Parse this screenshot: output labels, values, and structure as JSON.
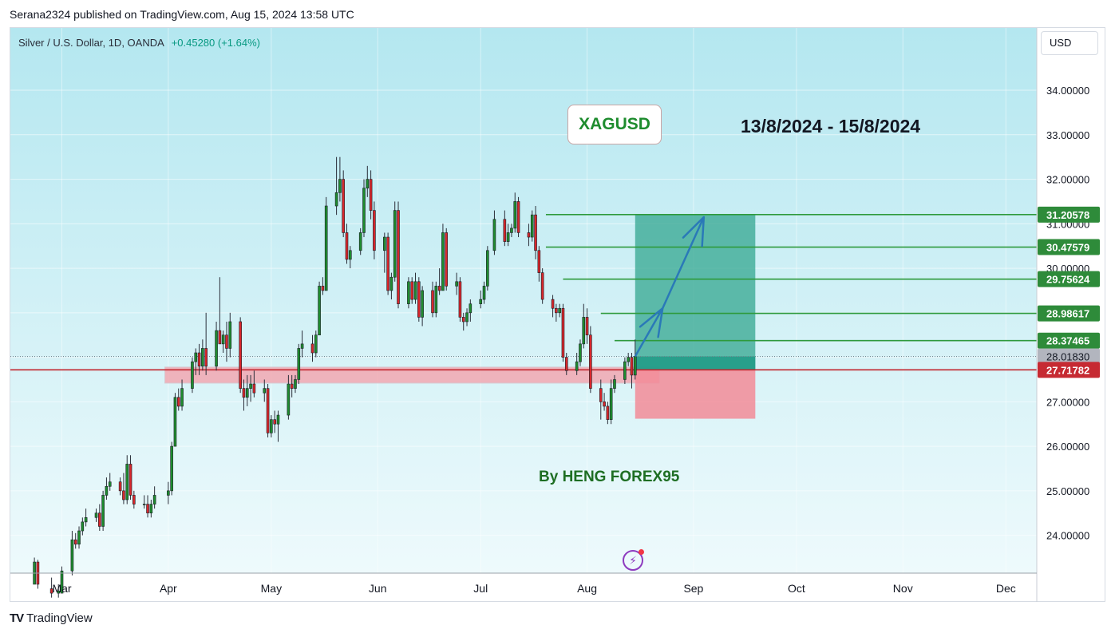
{
  "header": {
    "published_by": "Serana2324 published on TradingView.com, Aug 15, 2024 13:58 UTC"
  },
  "symbol": {
    "name": "Silver / U.S. Dollar, 1D, OANDA",
    "change": "+0.45280 (+1.64%)"
  },
  "currency": "USD",
  "annotations": {
    "ticker": "XAGUSD",
    "date_range": "13/8/2024 - 15/8/2024",
    "author": "By HENG FOREX95"
  },
  "brand": {
    "name": "TradingView"
  },
  "colors": {
    "up": "#1e8c2e",
    "down": "#d8262b",
    "target_zone": "#3aa993",
    "stop_zone": "#f28b98",
    "support_zone": "#f3a3ad",
    "level_line": "#2e9a3c",
    "entry_line": "#c2262e",
    "arrow": "#2a79b8"
  },
  "chart_data": {
    "type": "candlestick",
    "y_axis_ticks": [
      24,
      25,
      26,
      27,
      28,
      29,
      30,
      31,
      32,
      33,
      34
    ],
    "y_tick_labels": [
      "24.00000",
      "25.00000",
      "26.00000",
      "27.00000",
      "28.00000",
      "29.00000",
      "30.00000",
      "31.00000",
      "32.00000",
      "33.00000",
      "34.00000"
    ],
    "ylim": [
      23.15,
      35.4
    ],
    "x_axis_labels": [
      {
        "label": "Mar",
        "date": "2024-03-01"
      },
      {
        "label": "Apr",
        "date": "2024-04-01"
      },
      {
        "label": "May",
        "date": "2024-05-01"
      },
      {
        "label": "Jun",
        "date": "2024-06-01"
      },
      {
        "label": "Jul",
        "date": "2024-07-01"
      },
      {
        "label": "Aug",
        "date": "2024-08-01"
      },
      {
        "label": "Sep",
        "date": "2024-09-01"
      },
      {
        "label": "Oct",
        "date": "2024-10-01"
      },
      {
        "label": "Nov",
        "date": "2024-11-01"
      },
      {
        "label": "Dec",
        "date": "2024-12-01"
      }
    ],
    "xlim": [
      "2024-02-15",
      "2024-12-10"
    ],
    "price_labels": [
      {
        "value": 31.20578,
        "label": "31.20578",
        "kind": "target"
      },
      {
        "value": 30.47579,
        "label": "30.47579",
        "kind": "target"
      },
      {
        "value": 29.75624,
        "label": "29.75624",
        "kind": "target"
      },
      {
        "value": 28.98617,
        "label": "28.98617",
        "kind": "target"
      },
      {
        "value": 28.37465,
        "label": "28.37465",
        "kind": "target"
      },
      {
        "value": 28.0183,
        "label": "28.01830",
        "kind": "current"
      },
      {
        "value": 27.71782,
        "label": "27.71782",
        "kind": "entry"
      }
    ],
    "level_lines": [
      {
        "value": 31.20578,
        "start": "2024-07-20"
      },
      {
        "value": 30.47579,
        "start": "2024-07-20"
      },
      {
        "value": 29.75624,
        "start": "2024-07-25"
      },
      {
        "value": 28.98617,
        "start": "2024-08-05"
      },
      {
        "value": 28.37465,
        "start": "2024-08-09"
      }
    ],
    "entry_line": {
      "value": 27.71782
    },
    "current_price": 28.0183,
    "position": {
      "start": "2024-08-15",
      "end": "2024-09-19",
      "entry": 27.71782,
      "target": 31.20578,
      "stop": 26.62
    },
    "support_zone": {
      "start": "2024-03-31",
      "end": "2024-08-22",
      "top": 27.78,
      "bottom": 27.42
    },
    "arrow_path": [
      {
        "date": "2024-08-15",
        "price": 28.02
      },
      {
        "date": "2024-08-23",
        "price": 29.1
      },
      {
        "date": "2024-09-04",
        "price": 31.15
      }
    ],
    "candles": [
      {
        "d": "2024-02-22",
        "o": 22.9,
        "h": 23.5,
        "l": 22.9,
        "c": 23.4
      },
      {
        "d": "2024-02-23",
        "o": 23.4,
        "h": 23.45,
        "l": 22.8,
        "c": 22.9
      },
      {
        "d": "2024-02-27",
        "o": 22.8,
        "h": 23.05,
        "l": 22.6,
        "c": 22.7
      },
      {
        "d": "2024-02-29",
        "o": 22.7,
        "h": 22.9,
        "l": 22.6,
        "c": 22.75
      },
      {
        "d": "2024-03-01",
        "o": 22.7,
        "h": 23.3,
        "l": 22.7,
        "c": 23.2
      },
      {
        "d": "2024-03-04",
        "o": 23.2,
        "h": 24.1,
        "l": 23.1,
        "c": 23.9
      },
      {
        "d": "2024-03-05",
        "o": 23.9,
        "h": 24.05,
        "l": 23.7,
        "c": 23.8
      },
      {
        "d": "2024-03-06",
        "o": 23.8,
        "h": 24.2,
        "l": 23.7,
        "c": 24.1
      },
      {
        "d": "2024-03-07",
        "o": 24.1,
        "h": 24.4,
        "l": 24.0,
        "c": 24.3
      },
      {
        "d": "2024-03-08",
        "o": 24.3,
        "h": 24.6,
        "l": 24.2,
        "c": 24.4
      },
      {
        "d": "2024-03-11",
        "o": 24.4,
        "h": 24.6,
        "l": 24.3,
        "c": 24.5
      },
      {
        "d": "2024-03-12",
        "o": 24.5,
        "h": 24.7,
        "l": 24.1,
        "c": 24.2
      },
      {
        "d": "2024-03-13",
        "o": 24.2,
        "h": 25.0,
        "l": 24.1,
        "c": 24.9
      },
      {
        "d": "2024-03-14",
        "o": 24.9,
        "h": 25.3,
        "l": 24.8,
        "c": 25.1
      },
      {
        "d": "2024-03-15",
        "o": 25.1,
        "h": 25.4,
        "l": 25.0,
        "c": 25.2
      },
      {
        "d": "2024-03-18",
        "o": 25.2,
        "h": 25.3,
        "l": 24.9,
        "c": 25.0
      },
      {
        "d": "2024-03-19",
        "o": 25.0,
        "h": 25.4,
        "l": 24.7,
        "c": 24.8
      },
      {
        "d": "2024-03-20",
        "o": 24.8,
        "h": 25.8,
        "l": 24.7,
        "c": 25.6
      },
      {
        "d": "2024-03-21",
        "o": 25.6,
        "h": 25.8,
        "l": 24.8,
        "c": 24.9
      },
      {
        "d": "2024-03-22",
        "o": 24.9,
        "h": 25.0,
        "l": 24.6,
        "c": 24.7
      },
      {
        "d": "2024-03-25",
        "o": 24.7,
        "h": 24.9,
        "l": 24.6,
        "c": 24.7
      },
      {
        "d": "2024-03-26",
        "o": 24.7,
        "h": 24.9,
        "l": 24.4,
        "c": 24.5
      },
      {
        "d": "2024-03-27",
        "o": 24.5,
        "h": 24.8,
        "l": 24.4,
        "c": 24.7
      },
      {
        "d": "2024-03-28",
        "o": 24.7,
        "h": 25.1,
        "l": 24.6,
        "c": 24.9
      },
      {
        "d": "2024-04-01",
        "o": 24.9,
        "h": 25.2,
        "l": 24.7,
        "c": 25.0
      },
      {
        "d": "2024-04-02",
        "o": 25.0,
        "h": 26.1,
        "l": 24.9,
        "c": 26.0
      },
      {
        "d": "2024-04-03",
        "o": 26.0,
        "h": 27.2,
        "l": 26.0,
        "c": 27.1
      },
      {
        "d": "2024-04-04",
        "o": 27.1,
        "h": 27.3,
        "l": 26.8,
        "c": 26.9
      },
      {
        "d": "2024-04-05",
        "o": 26.9,
        "h": 27.5,
        "l": 26.8,
        "c": 27.3
      },
      {
        "d": "2024-04-08",
        "o": 27.3,
        "h": 28.0,
        "l": 27.2,
        "c": 27.9
      },
      {
        "d": "2024-04-09",
        "o": 27.9,
        "h": 28.2,
        "l": 27.6,
        "c": 28.1
      },
      {
        "d": "2024-04-10",
        "o": 28.1,
        "h": 28.3,
        "l": 27.6,
        "c": 27.8
      },
      {
        "d": "2024-04-11",
        "o": 27.8,
        "h": 28.4,
        "l": 27.7,
        "c": 28.2
      },
      {
        "d": "2024-04-12",
        "o": 28.2,
        "h": 29.0,
        "l": 27.6,
        "c": 27.8
      },
      {
        "d": "2024-04-15",
        "o": 27.8,
        "h": 28.8,
        "l": 27.7,
        "c": 28.6
      },
      {
        "d": "2024-04-16",
        "o": 28.6,
        "h": 29.8,
        "l": 28.4,
        "c": 28.3
      },
      {
        "d": "2024-04-17",
        "o": 28.3,
        "h": 28.6,
        "l": 28.1,
        "c": 28.5
      },
      {
        "d": "2024-04-18",
        "o": 28.5,
        "h": 28.8,
        "l": 27.9,
        "c": 28.2
      },
      {
        "d": "2024-04-19",
        "o": 28.2,
        "h": 29.0,
        "l": 28.0,
        "c": 28.8
      },
      {
        "d": "2024-04-22",
        "o": 28.8,
        "h": 28.9,
        "l": 27.2,
        "c": 27.3
      },
      {
        "d": "2024-04-23",
        "o": 27.3,
        "h": 27.5,
        "l": 26.8,
        "c": 27.1
      },
      {
        "d": "2024-04-24",
        "o": 27.1,
        "h": 27.6,
        "l": 26.9,
        "c": 27.3
      },
      {
        "d": "2024-04-25",
        "o": 27.3,
        "h": 27.6,
        "l": 27.0,
        "c": 27.4
      },
      {
        "d": "2024-04-26",
        "o": 27.4,
        "h": 27.7,
        "l": 27.1,
        "c": 27.2
      },
      {
        "d": "2024-04-29",
        "o": 27.2,
        "h": 27.5,
        "l": 27.0,
        "c": 27.3
      },
      {
        "d": "2024-04-30",
        "o": 27.3,
        "h": 27.4,
        "l": 26.2,
        "c": 26.3
      },
      {
        "d": "2024-05-01",
        "o": 26.3,
        "h": 26.7,
        "l": 26.2,
        "c": 26.6
      },
      {
        "d": "2024-05-02",
        "o": 26.6,
        "h": 26.8,
        "l": 26.3,
        "c": 26.5
      },
      {
        "d": "2024-05-03",
        "o": 26.5,
        "h": 26.8,
        "l": 26.1,
        "c": 26.7
      },
      {
        "d": "2024-05-06",
        "o": 26.7,
        "h": 27.6,
        "l": 26.6,
        "c": 27.4
      },
      {
        "d": "2024-05-07",
        "o": 27.4,
        "h": 27.6,
        "l": 27.1,
        "c": 27.3
      },
      {
        "d": "2024-05-08",
        "o": 27.3,
        "h": 27.6,
        "l": 27.2,
        "c": 27.5
      },
      {
        "d": "2024-05-09",
        "o": 27.5,
        "h": 28.3,
        "l": 27.4,
        "c": 28.2
      },
      {
        "d": "2024-05-10",
        "o": 28.2,
        "h": 28.6,
        "l": 28.0,
        "c": 28.3
      },
      {
        "d": "2024-05-13",
        "o": 28.3,
        "h": 28.5,
        "l": 27.9,
        "c": 28.1
      },
      {
        "d": "2024-05-14",
        "o": 28.1,
        "h": 28.6,
        "l": 28.0,
        "c": 28.5
      },
      {
        "d": "2024-05-15",
        "o": 28.5,
        "h": 29.7,
        "l": 28.5,
        "c": 29.6
      },
      {
        "d": "2024-05-16",
        "o": 29.6,
        "h": 29.8,
        "l": 29.4,
        "c": 29.5
      },
      {
        "d": "2024-05-17",
        "o": 29.5,
        "h": 31.6,
        "l": 29.5,
        "c": 31.4
      },
      {
        "d": "2024-05-20",
        "o": 31.4,
        "h": 32.5,
        "l": 31.2,
        "c": 31.7
      },
      {
        "d": "2024-05-21",
        "o": 31.7,
        "h": 32.5,
        "l": 31.5,
        "c": 32.0
      },
      {
        "d": "2024-05-22",
        "o": 32.0,
        "h": 32.2,
        "l": 30.7,
        "c": 30.8
      },
      {
        "d": "2024-05-23",
        "o": 30.8,
        "h": 31.0,
        "l": 30.1,
        "c": 30.2
      },
      {
        "d": "2024-05-24",
        "o": 30.2,
        "h": 30.5,
        "l": 30.0,
        "c": 30.4
      },
      {
        "d": "2024-05-27",
        "o": 30.4,
        "h": 30.9,
        "l": 30.3,
        "c": 30.8
      },
      {
        "d": "2024-05-28",
        "o": 30.8,
        "h": 32.0,
        "l": 30.7,
        "c": 31.8
      },
      {
        "d": "2024-05-29",
        "o": 31.8,
        "h": 32.3,
        "l": 31.6,
        "c": 32.0
      },
      {
        "d": "2024-05-30",
        "o": 32.0,
        "h": 32.2,
        "l": 31.1,
        "c": 31.3
      },
      {
        "d": "2024-05-31",
        "o": 31.3,
        "h": 31.5,
        "l": 30.2,
        "c": 30.4
      },
      {
        "d": "2024-06-03",
        "o": 30.4,
        "h": 30.8,
        "l": 29.9,
        "c": 30.7
      },
      {
        "d": "2024-06-04",
        "o": 30.7,
        "h": 30.8,
        "l": 29.4,
        "c": 29.5
      },
      {
        "d": "2024-06-05",
        "o": 29.5,
        "h": 29.9,
        "l": 29.3,
        "c": 29.8
      },
      {
        "d": "2024-06-06",
        "o": 29.8,
        "h": 31.5,
        "l": 29.7,
        "c": 31.3
      },
      {
        "d": "2024-06-07",
        "o": 31.3,
        "h": 31.5,
        "l": 29.1,
        "c": 29.2
      },
      {
        "d": "2024-06-10",
        "o": 29.2,
        "h": 29.8,
        "l": 29.1,
        "c": 29.7
      },
      {
        "d": "2024-06-11",
        "o": 29.7,
        "h": 29.8,
        "l": 29.2,
        "c": 29.3
      },
      {
        "d": "2024-06-12",
        "o": 29.3,
        "h": 29.9,
        "l": 29.2,
        "c": 29.7
      },
      {
        "d": "2024-06-13",
        "o": 29.7,
        "h": 29.8,
        "l": 28.8,
        "c": 28.9
      },
      {
        "d": "2024-06-14",
        "o": 28.9,
        "h": 29.6,
        "l": 28.7,
        "c": 29.5
      },
      {
        "d": "2024-06-17",
        "o": 29.5,
        "h": 29.7,
        "l": 28.9,
        "c": 29.0
      },
      {
        "d": "2024-06-18",
        "o": 29.0,
        "h": 29.7,
        "l": 28.9,
        "c": 29.6
      },
      {
        "d": "2024-06-19",
        "o": 29.6,
        "h": 30.0,
        "l": 29.4,
        "c": 29.5
      },
      {
        "d": "2024-06-20",
        "o": 29.5,
        "h": 31.0,
        "l": 29.5,
        "c": 30.8
      },
      {
        "d": "2024-06-21",
        "o": 30.8,
        "h": 30.9,
        "l": 29.5,
        "c": 29.6
      },
      {
        "d": "2024-06-24",
        "o": 29.6,
        "h": 29.9,
        "l": 29.4,
        "c": 29.7
      },
      {
        "d": "2024-06-25",
        "o": 29.7,
        "h": 29.8,
        "l": 28.8,
        "c": 28.9
      },
      {
        "d": "2024-06-26",
        "o": 28.9,
        "h": 29.0,
        "l": 28.6,
        "c": 28.8
      },
      {
        "d": "2024-06-27",
        "o": 28.8,
        "h": 29.1,
        "l": 28.7,
        "c": 29.0
      },
      {
        "d": "2024-06-28",
        "o": 29.0,
        "h": 29.3,
        "l": 28.8,
        "c": 29.2
      },
      {
        "d": "2024-07-01",
        "o": 29.2,
        "h": 29.5,
        "l": 29.1,
        "c": 29.3
      },
      {
        "d": "2024-07-02",
        "o": 29.3,
        "h": 29.7,
        "l": 29.2,
        "c": 29.6
      },
      {
        "d": "2024-07-03",
        "o": 29.6,
        "h": 30.5,
        "l": 29.5,
        "c": 30.4
      },
      {
        "d": "2024-07-05",
        "o": 30.4,
        "h": 31.3,
        "l": 30.3,
        "c": 31.1
      },
      {
        "d": "2024-07-08",
        "o": 31.1,
        "h": 31.3,
        "l": 30.5,
        "c": 30.6
      },
      {
        "d": "2024-07-09",
        "o": 30.6,
        "h": 31.0,
        "l": 30.5,
        "c": 30.8
      },
      {
        "d": "2024-07-10",
        "o": 30.8,
        "h": 31.0,
        "l": 30.7,
        "c": 30.9
      },
      {
        "d": "2024-07-11",
        "o": 30.9,
        "h": 31.7,
        "l": 30.8,
        "c": 31.5
      },
      {
        "d": "2024-07-12",
        "o": 31.5,
        "h": 31.6,
        "l": 30.7,
        "c": 30.8
      },
      {
        "d": "2024-07-15",
        "o": 30.8,
        "h": 31.0,
        "l": 30.5,
        "c": 30.7
      },
      {
        "d": "2024-07-16",
        "o": 30.7,
        "h": 31.3,
        "l": 30.6,
        "c": 31.2
      },
      {
        "d": "2024-07-17",
        "o": 31.2,
        "h": 31.4,
        "l": 30.2,
        "c": 30.4
      },
      {
        "d": "2024-07-18",
        "o": 30.4,
        "h": 30.5,
        "l": 29.7,
        "c": 29.9
      },
      {
        "d": "2024-07-19",
        "o": 29.9,
        "h": 30.0,
        "l": 29.2,
        "c": 29.3
      },
      {
        "d": "2024-07-22",
        "o": 29.3,
        "h": 29.4,
        "l": 28.9,
        "c": 29.1
      },
      {
        "d": "2024-07-23",
        "o": 29.1,
        "h": 29.2,
        "l": 28.8,
        "c": 29.0
      },
      {
        "d": "2024-07-24",
        "o": 29.0,
        "h": 29.2,
        "l": 28.9,
        "c": 29.1
      },
      {
        "d": "2024-07-25",
        "o": 29.1,
        "h": 29.2,
        "l": 27.9,
        "c": 28.0
      },
      {
        "d": "2024-07-26",
        "o": 28.0,
        "h": 28.1,
        "l": 27.6,
        "c": 27.7
      },
      {
        "d": "2024-07-29",
        "o": 27.7,
        "h": 28.1,
        "l": 27.6,
        "c": 27.9
      },
      {
        "d": "2024-07-30",
        "o": 27.9,
        "h": 28.4,
        "l": 27.8,
        "c": 28.3
      },
      {
        "d": "2024-07-31",
        "o": 28.3,
        "h": 29.2,
        "l": 28.2,
        "c": 28.9
      },
      {
        "d": "2024-08-01",
        "o": 28.9,
        "h": 29.1,
        "l": 28.3,
        "c": 28.5
      },
      {
        "d": "2024-08-02",
        "o": 28.5,
        "h": 28.7,
        "l": 27.2,
        "c": 27.3
      },
      {
        "d": "2024-08-05",
        "o": 27.3,
        "h": 27.5,
        "l": 26.6,
        "c": 27.0
      },
      {
        "d": "2024-08-06",
        "o": 27.0,
        "h": 27.2,
        "l": 26.8,
        "c": 26.9
      },
      {
        "d": "2024-08-07",
        "o": 26.9,
        "h": 27.0,
        "l": 26.5,
        "c": 26.6
      },
      {
        "d": "2024-08-08",
        "o": 26.6,
        "h": 27.5,
        "l": 26.5,
        "c": 27.3
      },
      {
        "d": "2024-08-09",
        "o": 27.3,
        "h": 27.6,
        "l": 27.2,
        "c": 27.5
      },
      {
        "d": "2024-08-12",
        "o": 27.5,
        "h": 28.0,
        "l": 27.4,
        "c": 27.9
      },
      {
        "d": "2024-08-13",
        "o": 27.9,
        "h": 28.1,
        "l": 27.8,
        "c": 28.0
      },
      {
        "d": "2024-08-14",
        "o": 28.0,
        "h": 28.1,
        "l": 27.3,
        "c": 27.6
      },
      {
        "d": "2024-08-15",
        "o": 27.6,
        "h": 28.4,
        "l": 27.5,
        "c": 28.0183
      }
    ]
  }
}
